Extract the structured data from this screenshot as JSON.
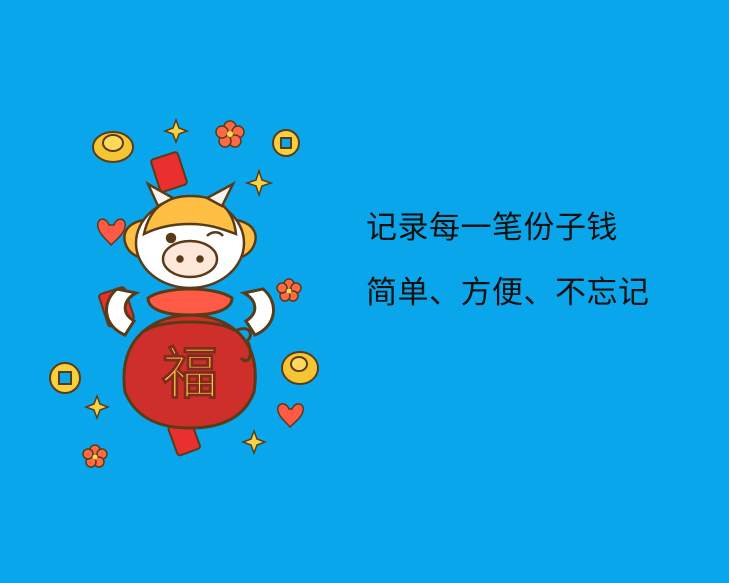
{
  "background_color": "#0aa6eb",
  "text_color": "#111111",
  "illustration": {
    "character": "ox",
    "bag_text": "福"
  },
  "tagline": {
    "line1": "记录每一笔份子钱",
    "line2": "简单、方便、不忘记"
  }
}
